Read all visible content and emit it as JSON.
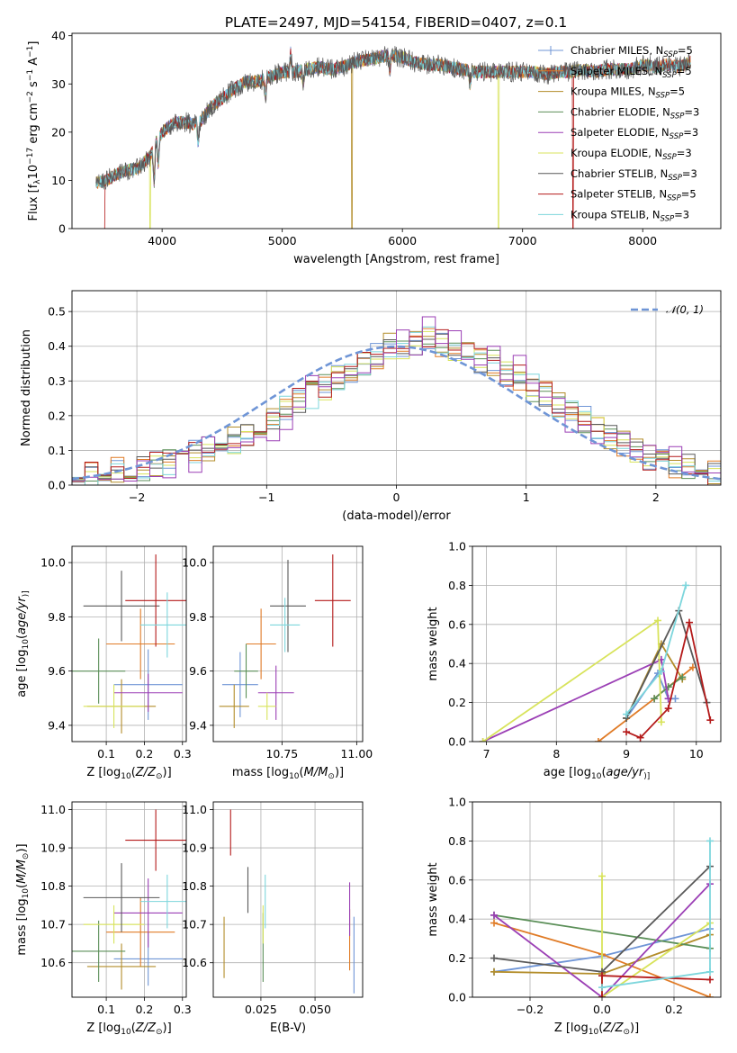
{
  "figure": {
    "title": "PLATE=2497, MJD=54154, FIBERID=0407, z=0.1"
  },
  "colors": {
    "model_colors": [
      "#6f95d6",
      "#e07b26",
      "#b38d2a",
      "#5b8f58",
      "#9b3fb5",
      "#d8e35b",
      "#595959",
      "#b41a1a",
      "#7dd6dc"
    ],
    "gaussian": "#6f95d6",
    "data": "#595959"
  },
  "chart_data": [
    {
      "id": "spectrum",
      "type": "line",
      "title": "PLATE=2497, MJD=54154, FIBERID=0407, z=0.1",
      "xlabel": "wavelength [Angstrom, rest frame]",
      "ylabel_parts": [
        "Flux [f",
        "λ",
        "10",
        "−17",
        " erg cm",
        "−2",
        " s",
        "−1",
        " A",
        "−1",
        "]"
      ],
      "xlim": [
        3250,
        8650
      ],
      "ylim": [
        0,
        40.5
      ],
      "xticks": [
        4000,
        5000,
        6000,
        7000,
        8000
      ],
      "yticks": [
        0,
        10,
        20,
        30,
        40
      ],
      "grid": false,
      "legend_position": "upper right",
      "legend": [
        {
          "name": "Chabrier MILES",
          "n": "5",
          "marker": "+"
        },
        {
          "name": "Salpeter MILES",
          "n": "5",
          "marker": ""
        },
        {
          "name": "Kroupa MILES",
          "n": "5",
          "marker": ""
        },
        {
          "name": "Chabrier ELODIE",
          "n": "3",
          "marker": ""
        },
        {
          "name": "Salpeter ELODIE",
          "n": "3",
          "marker": ""
        },
        {
          "name": "Kroupa ELODIE",
          "n": "3",
          "marker": ""
        },
        {
          "name": "Chabrier STELIB",
          "n": "3",
          "marker": ""
        },
        {
          "name": "Salpeter STELIB",
          "n": "5",
          "marker": ""
        },
        {
          "name": "Kroupa STELIB",
          "n": "3",
          "marker": ""
        }
      ],
      "continuum": {
        "x": [
          3450,
          3520,
          3600,
          3700,
          3800,
          3900,
          3950,
          4000,
          4100,
          4200,
          4300,
          4400,
          4500,
          4600,
          4700,
          4800,
          4900,
          5000,
          5100,
          5200,
          5300,
          5400,
          5500,
          5600,
          5700,
          5800,
          5900,
          6000,
          6100,
          6200,
          6300,
          6400,
          6500,
          6600,
          6700,
          6800,
          6900,
          7000,
          7100,
          7200,
          7300,
          7400,
          7500,
          7600,
          7700,
          7800,
          7900,
          8000,
          8100,
          8200,
          8300,
          8400
        ],
        "y": [
          9.5,
          9.8,
          11,
          12,
          12.5,
          15,
          18,
          20,
          22,
          22,
          21.5,
          25,
          27,
          29,
          30.5,
          30.5,
          31.5,
          32.5,
          32.5,
          33,
          33.5,
          33,
          33.5,
          34.5,
          35,
          35.5,
          36,
          35.5,
          34.5,
          34,
          34,
          33.5,
          33,
          32.5,
          32.5,
          32.5,
          32.5,
          32.5,
          32.5,
          32,
          32.5,
          32.5,
          33,
          32.5,
          33,
          33,
          33,
          34,
          33.5,
          34,
          33.5,
          34.5
        ]
      },
      "features": [
        {
          "x": 3933,
          "type": "absorption",
          "depth": 8
        },
        {
          "x": 3968,
          "type": "absorption",
          "depth": 6
        },
        {
          "x": 4300,
          "type": "absorption",
          "depth": 4
        },
        {
          "x": 4861,
          "type": "absorption",
          "depth": 4
        },
        {
          "x": 5070,
          "type": "emission",
          "height": 4
        },
        {
          "x": 5175,
          "type": "absorption",
          "depth": 3
        },
        {
          "x": 5895,
          "type": "absorption",
          "depth": 4
        },
        {
          "x": 6563,
          "type": "absorption",
          "depth": 3
        }
      ],
      "model_dropouts": [
        {
          "model": "Salpeter STELIB",
          "x": 3520
        },
        {
          "model": "Kroupa ELODIE",
          "x": 3900
        },
        {
          "model": "Kroupa MILES",
          "x": 5580
        },
        {
          "model": "Kroupa ELODIE",
          "x": 6800
        },
        {
          "model": "Salpeter STELIB",
          "x": 7420
        }
      ]
    },
    {
      "id": "residual-histogram",
      "type": "histogram",
      "xlabel": "(data-model)/error",
      "ylabel": "Normed distribution",
      "xlim": [
        -2.5,
        2.5
      ],
      "ylim": [
        0,
        0.56
      ],
      "xticks": [
        -2,
        -1,
        0,
        1,
        2
      ],
      "yticks": [
        0.0,
        0.1,
        0.2,
        0.3,
        0.4,
        0.5
      ],
      "grid": true,
      "legend_position": "upper right",
      "legend": [
        "𝒩(0, 1)"
      ],
      "bin_width": 0.1,
      "bin_start": -2.5,
      "base_heights": [
        0.02,
        0.03,
        0.03,
        0.04,
        0.04,
        0.05,
        0.06,
        0.07,
        0.08,
        0.09,
        0.11,
        0.12,
        0.13,
        0.15,
        0.17,
        0.19,
        0.22,
        0.24,
        0.26,
        0.28,
        0.31,
        0.33,
        0.35,
        0.37,
        0.4,
        0.4,
        0.41,
        0.43,
        0.41,
        0.39,
        0.38,
        0.36,
        0.35,
        0.32,
        0.31,
        0.28,
        0.26,
        0.23,
        0.21,
        0.19,
        0.16,
        0.14,
        0.12,
        0.1,
        0.08,
        0.07,
        0.06,
        0.05,
        0.04,
        0.03
      ],
      "gaussian": {
        "mu": 0,
        "sigma": 1,
        "label": "𝒩(0, 1)"
      }
    },
    {
      "id": "age-vs-Z",
      "type": "errorbar",
      "xlabel_parts": [
        "Z [log",
        "10",
        "(",
        "Z/Z",
        "⊙",
        ")]"
      ],
      "ylabel_parts": [
        "age  [log",
        "10",
        "(",
        "age/yr",
        ")]"
      ],
      "xlim": [
        0.01,
        0.31
      ],
      "ylim": [
        9.34,
        10.06
      ],
      "xticks": [
        0.1,
        0.2,
        0.3
      ],
      "yticks": [
        9.4,
        9.6,
        9.8,
        10.0
      ],
      "grid": true,
      "points": [
        {
          "x": 0.21,
          "xerr": 0.09,
          "y": 9.55,
          "yerr": 0.13
        },
        {
          "x": 0.19,
          "xerr": 0.09,
          "y": 9.7,
          "yerr": 0.13
        },
        {
          "x": 0.14,
          "xerr": 0.09,
          "y": 9.47,
          "yerr": 0.1
        },
        {
          "x": 0.08,
          "xerr": 0.07,
          "y": 9.6,
          "yerr": 0.12
        },
        {
          "x": 0.21,
          "xerr": 0.09,
          "y": 9.52,
          "yerr": 0.07
        },
        {
          "x": 0.12,
          "xerr": 0.08,
          "y": 9.47,
          "yerr": 0.08
        },
        {
          "x": 0.14,
          "xerr": 0.1,
          "y": 9.84,
          "yerr": 0.13
        },
        {
          "x": 0.23,
          "xerr": 0.08,
          "y": 9.86,
          "yerr": 0.17
        },
        {
          "x": 0.26,
          "xerr": 0.07,
          "y": 9.77,
          "yerr": 0.12
        }
      ]
    },
    {
      "id": "age-vs-mass",
      "type": "errorbar",
      "xlabel_parts": [
        "mass [log",
        "10",
        "(",
        "M/M",
        "⊙",
        ")]"
      ],
      "xlim": [
        10.52,
        11.02
      ],
      "ylim": [
        9.34,
        10.06
      ],
      "xticks": [
        10.75,
        11.0
      ],
      "yticks": [
        9.4,
        9.6,
        9.8,
        10.0
      ],
      "grid": true,
      "points": [
        {
          "x": 10.61,
          "xerr": 0.06,
          "y": 9.55,
          "yerr": 0.12
        },
        {
          "x": 10.68,
          "xerr": 0.05,
          "y": 9.7,
          "yerr": 0.13
        },
        {
          "x": 10.59,
          "xerr": 0.05,
          "y": 9.47,
          "yerr": 0.08
        },
        {
          "x": 10.63,
          "xerr": 0.04,
          "y": 9.6,
          "yerr": 0.1
        },
        {
          "x": 10.73,
          "xerr": 0.06,
          "y": 9.52,
          "yerr": 0.1
        },
        {
          "x": 10.7,
          "xerr": 0.03,
          "y": 9.47,
          "yerr": 0.05
        },
        {
          "x": 10.77,
          "xerr": 0.06,
          "y": 9.84,
          "yerr": 0.17
        },
        {
          "x": 10.92,
          "xerr": 0.06,
          "y": 9.86,
          "yerr": 0.17
        },
        {
          "x": 10.76,
          "xerr": 0.05,
          "y": 9.77,
          "yerr": 0.1
        }
      ]
    },
    {
      "id": "mass-weight-vs-age",
      "type": "line",
      "xlabel_parts": [
        "age  [log",
        "10",
        "(",
        "age/yr",
        ")]"
      ],
      "ylabel": "mass weight",
      "xlim": [
        6.8,
        10.35
      ],
      "ylim": [
        0,
        1.0
      ],
      "xticks": [
        7,
        8,
        9,
        10
      ],
      "yticks": [
        0.0,
        0.2,
        0.4,
        0.6,
        0.8,
        1.0
      ],
      "grid": true,
      "series": [
        {
          "x": [
            9.0,
            9.45,
            9.6,
            9.7
          ],
          "y": [
            0.12,
            0.35,
            0.22,
            0.22
          ]
        },
        {
          "x": [
            8.6,
            9.4,
            9.6,
            9.95
          ],
          "y": [
            0.0,
            0.22,
            0.28,
            0.38
          ]
        },
        {
          "x": [
            9.0,
            9.5,
            9.8
          ],
          "y": [
            0.12,
            0.5,
            0.32
          ]
        },
        {
          "x": [
            9.4,
            9.6,
            9.8
          ],
          "y": [
            0.22,
            0.28,
            0.33
          ]
        },
        {
          "x": [
            6.95,
            9.5,
            9.6
          ],
          "y": [
            0.0,
            0.42,
            0.22
          ]
        },
        {
          "x": [
            6.95,
            9.45,
            9.5
          ],
          "y": [
            0.0,
            0.62,
            0.1
          ]
        },
        {
          "x": [
            9.0,
            9.75,
            10.15
          ],
          "y": [
            0.12,
            0.67,
            0.2
          ]
        },
        {
          "x": [
            9.0,
            9.2,
            9.6,
            9.9,
            10.2
          ],
          "y": [
            0.05,
            0.02,
            0.17,
            0.61,
            0.11
          ]
        },
        {
          "x": [
            9.0,
            9.5,
            9.85
          ],
          "y": [
            0.14,
            0.36,
            0.8
          ]
        }
      ]
    },
    {
      "id": "mass-vs-Z",
      "type": "errorbar",
      "xlabel_parts": [
        "Z [log",
        "10",
        "(",
        "Z/Z",
        "⊙",
        ")]"
      ],
      "ylabel_parts": [
        "mass [log",
        "10",
        "(",
        "M/M",
        "⊙",
        ")]"
      ],
      "xlim": [
        0.01,
        0.31
      ],
      "ylim": [
        10.51,
        11.02
      ],
      "xticks": [
        0.1,
        0.2,
        0.3
      ],
      "yticks": [
        10.6,
        10.7,
        10.8,
        10.9,
        11.0
      ],
      "grid": true,
      "points": [
        {
          "x": 0.21,
          "xerr": 0.09,
          "y": 10.61,
          "yerr": 0.07
        },
        {
          "x": 0.19,
          "xerr": 0.09,
          "y": 10.68,
          "yerr": 0.09
        },
        {
          "x": 0.14,
          "xerr": 0.09,
          "y": 10.59,
          "yerr": 0.06
        },
        {
          "x": 0.08,
          "xerr": 0.07,
          "y": 10.63,
          "yerr": 0.08
        },
        {
          "x": 0.21,
          "xerr": 0.09,
          "y": 10.73,
          "yerr": 0.09
        },
        {
          "x": 0.12,
          "xerr": 0.08,
          "y": 10.7,
          "yerr": 0.05
        },
        {
          "x": 0.14,
          "xerr": 0.1,
          "y": 10.77,
          "yerr": 0.09
        },
        {
          "x": 0.23,
          "xerr": 0.08,
          "y": 10.92,
          "yerr": 0.08
        },
        {
          "x": 0.26,
          "xerr": 0.07,
          "y": 10.76,
          "yerr": 0.07
        }
      ]
    },
    {
      "id": "mass-vs-ebv",
      "type": "errorbar",
      "xlabel": "E(B-V)",
      "xlim": [
        0.003,
        0.072
      ],
      "ylim": [
        10.51,
        11.02
      ],
      "xticks": [
        0.025,
        0.05
      ],
      "yticks": [
        10.6,
        10.7,
        10.8,
        10.9,
        11.0
      ],
      "grid": true,
      "points": [
        {
          "x": 0.068,
          "xerr": 0.0,
          "y": 10.62,
          "yerr": 0.1
        },
        {
          "x": 0.066,
          "xerr": 0.0,
          "y": 10.66,
          "yerr": 0.08
        },
        {
          "x": 0.008,
          "xerr": 0.0,
          "y": 10.64,
          "yerr": 0.08
        },
        {
          "x": 0.026,
          "xerr": 0.0,
          "y": 10.64,
          "yerr": 0.09
        },
        {
          "x": 0.066,
          "xerr": 0.0,
          "y": 10.74,
          "yerr": 0.07
        },
        {
          "x": 0.026,
          "xerr": 0.0,
          "y": 10.7,
          "yerr": 0.05
        },
        {
          "x": 0.019,
          "xerr": 0.0,
          "y": 10.79,
          "yerr": 0.06
        },
        {
          "x": 0.011,
          "xerr": 0.0,
          "y": 10.94,
          "yerr": 0.06
        },
        {
          "x": 0.027,
          "xerr": 0.0,
          "y": 10.76,
          "yerr": 0.07
        }
      ]
    },
    {
      "id": "mass-weight-vs-Z",
      "type": "line",
      "xlabel_parts": [
        "Z [log",
        "10",
        "(",
        "Z/Z",
        "⊙",
        ")]"
      ],
      "ylabel": "mass weight",
      "xlim": [
        -0.36,
        0.33
      ],
      "ylim": [
        0,
        1.0
      ],
      "xticks": [
        -0.2,
        0.0,
        0.2
      ],
      "yticks": [
        0.0,
        0.2,
        0.4,
        0.6,
        0.8,
        1.0
      ],
      "grid": true,
      "series": [
        {
          "x": [
            -0.3,
            0.0,
            0.3
          ],
          "y": [
            0.13,
            0.21,
            0.35
          ]
        },
        {
          "x": [
            -0.3,
            0.0,
            0.3
          ],
          "y": [
            0.38,
            0.22,
            0.0
          ]
        },
        {
          "x": [
            -0.3,
            0.0,
            0.3
          ],
          "y": [
            0.13,
            0.12,
            0.32
          ]
        },
        {
          "x": [
            -0.3,
            0.3
          ],
          "y": [
            0.42,
            0.25
          ]
        },
        {
          "x": [
            -0.3,
            0.0,
            0.3
          ],
          "y": [
            0.42,
            0.0,
            0.58
          ]
        },
        {
          "x": [
            0.0,
            0.0,
            0.3
          ],
          "y": [
            0.62,
            0.0,
            0.38
          ]
        },
        {
          "x": [
            -0.3,
            0.0,
            0.3
          ],
          "y": [
            0.2,
            0.13,
            0.67
          ]
        },
        {
          "x": [
            0.0,
            0.0,
            0.3
          ],
          "y": [
            0.0,
            0.11,
            0.09
          ]
        },
        {
          "x": [
            0.0,
            0.3,
            0.3
          ],
          "y": [
            0.05,
            0.13,
            0.8
          ]
        }
      ]
    }
  ]
}
